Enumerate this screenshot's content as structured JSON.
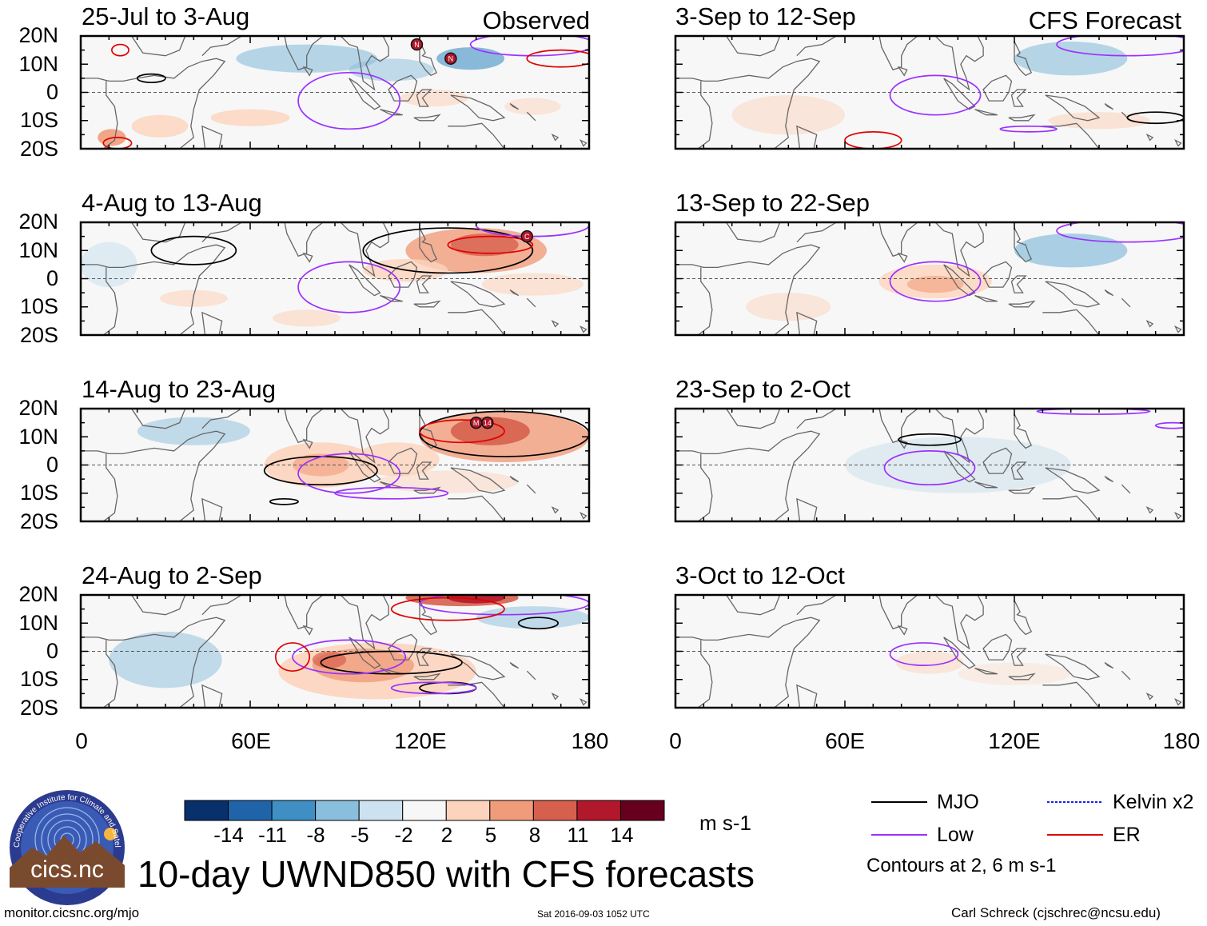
{
  "figure": {
    "title": "10-day UWND850 with CFS forecasts",
    "observed_label": "Observed",
    "forecast_label": "CFS Forecast",
    "footer_url": "monitor.cicsnc.org/mjo",
    "timestamp": "Sat 2016-09-03 1052 UTC",
    "author": "Carl Schreck (cjschrec@ncsu.edu)",
    "units": "m s-1",
    "contour_note": "Contours at 2, 6 m s-1"
  },
  "panels": {
    "observed": [
      {
        "period": "25-Jul to 3-Aug"
      },
      {
        "period": "4-Aug to 13-Aug"
      },
      {
        "period": "14-Aug to 23-Aug"
      },
      {
        "period": "24-Aug to 2-Sep"
      }
    ],
    "forecast": [
      {
        "period": "3-Sep to 12-Sep"
      },
      {
        "period": "13-Sep to 22-Sep"
      },
      {
        "period": "23-Sep to 2-Oct"
      },
      {
        "period": "3-Oct to 12-Oct"
      }
    ]
  },
  "axes": {
    "lat_labels": [
      "20N",
      "10N",
      "0",
      "10S",
      "20S"
    ],
    "lon_labels": [
      "0",
      "60E",
      "120E",
      "180"
    ]
  },
  "colorbar": {
    "labels": [
      "-14",
      "-11",
      "-8",
      "-5",
      "-2",
      "2",
      "5",
      "8",
      "11",
      "14"
    ],
    "colors": [
      "#08306b",
      "#1f63a8",
      "#3f8fc5",
      "#89bedc",
      "#cde2f0",
      "#f7f7f7",
      "#fcd3bc",
      "#f09c7b",
      "#d6604d",
      "#b2182b",
      "#67001f"
    ]
  },
  "legend": [
    {
      "label": "MJO",
      "color": "#000000",
      "style": "solid"
    },
    {
      "label": "Kelvin x2",
      "color": "#1a1aff",
      "style": "dashed"
    },
    {
      "label": "Low",
      "color": "#9b30ff",
      "style": "solid"
    },
    {
      "label": "ER",
      "color": "#e00000",
      "style": "solid"
    }
  ],
  "storm_markers": [
    "N",
    "N",
    "M",
    "14",
    "C"
  ],
  "logo": {
    "text": "cics.nc",
    "ring_text": "Cooperative Institute for Climate and Satellites"
  },
  "colors": {
    "mjo": "#000000",
    "low": "#9b30ff",
    "er": "#e00000",
    "kelvin": "#1a1aff",
    "land": "#666666"
  }
}
